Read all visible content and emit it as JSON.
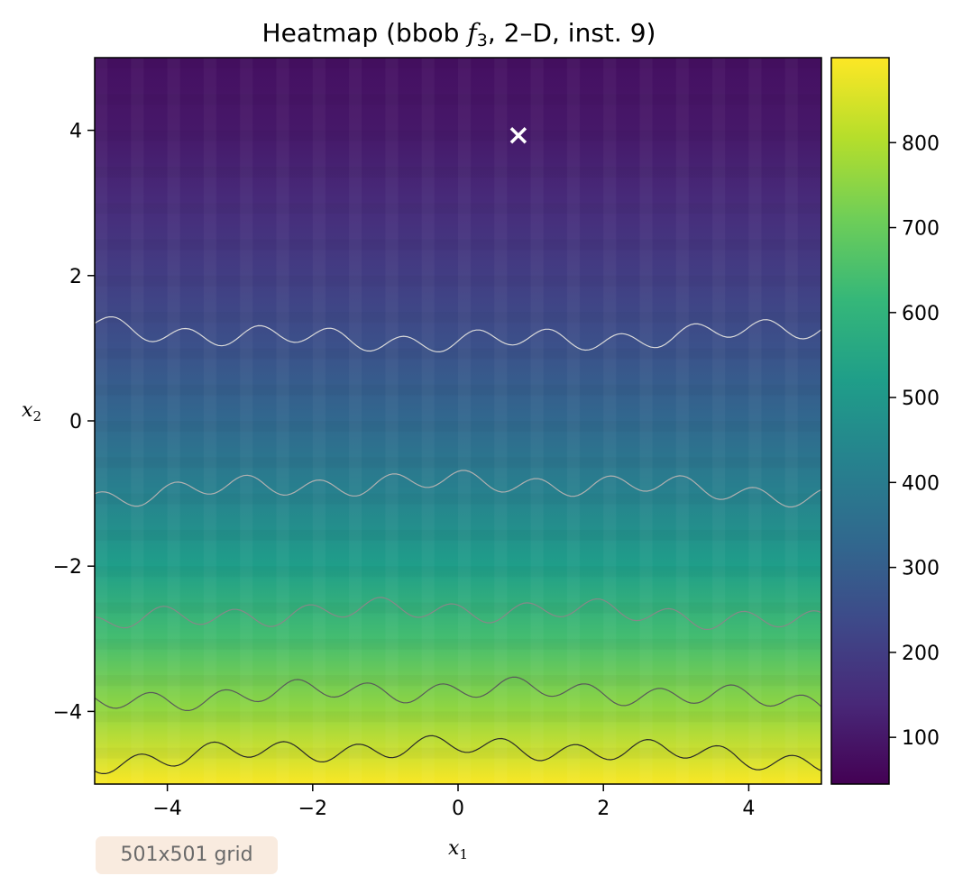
{
  "chart_data": {
    "type": "heatmap",
    "title": {
      "prefix": "Heatmap (bbob ",
      "func": "f",
      "func_sub": "3",
      "suffix": ", 2–D, inst. 9)"
    },
    "xlabel": {
      "base": "x",
      "sub": "1"
    },
    "ylabel": {
      "base": "x",
      "sub": "2"
    },
    "xlim": [
      -5,
      5
    ],
    "ylim": [
      -5,
      5
    ],
    "xticks": [
      -4,
      -2,
      0,
      2,
      4
    ],
    "yticks": [
      -4,
      -2,
      0,
      2,
      4
    ],
    "colormap": "viridis",
    "colorbar": {
      "min": 45,
      "max": 900,
      "ticks": [
        100,
        200,
        300,
        400,
        500,
        600,
        700,
        800
      ]
    },
    "optimum_marker": {
      "x": 0.83,
      "y": 3.93,
      "symbol": "x",
      "color": "#ffffff"
    },
    "contour_levels": [
      {
        "mean_y": 1.1,
        "color": "#d9d9d9"
      },
      {
        "mean_y": -0.85,
        "color": "#b0b0b0"
      },
      {
        "mean_y": -2.6,
        "color": "#888888"
      },
      {
        "mean_y": -3.7,
        "color": "#5a5a5a"
      },
      {
        "mean_y": -4.5,
        "color": "#2a2a2a"
      }
    ],
    "annotation": "501x501 grid"
  }
}
